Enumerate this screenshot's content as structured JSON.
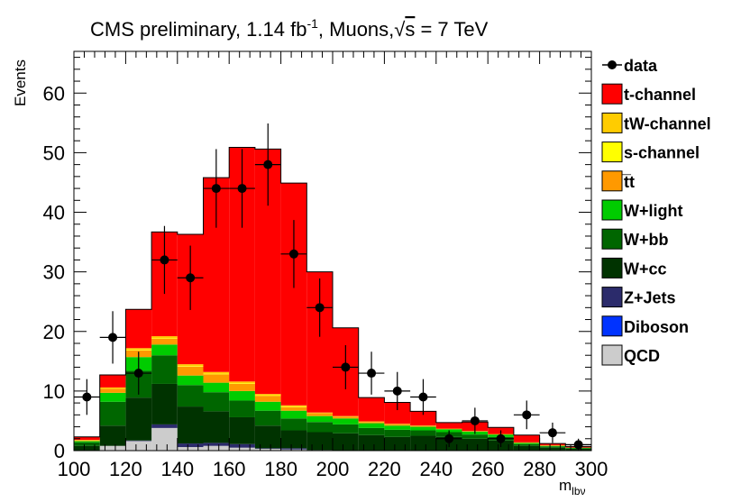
{
  "chart_data": {
    "type": "bar",
    "stacked": true,
    "title": {
      "main": "CMS preliminary, 1.14 fb",
      "lumi_superscript": "-1",
      "channel": ", Muons,",
      "sqrt_symbol": "√",
      "s": "s",
      "energy": " = 7 TeV"
    },
    "xlabel_main": "m",
    "xlabel_sub": "lbν",
    "ylabel": "Events",
    "xlim": [
      100,
      300
    ],
    "ylim": [
      0,
      67
    ],
    "xticks": [
      100,
      120,
      140,
      160,
      180,
      200,
      220,
      240,
      260,
      280,
      300
    ],
    "yticks": [
      0,
      10,
      20,
      30,
      40,
      50,
      60
    ],
    "bin_edges": [
      100,
      110,
      120,
      130,
      140,
      150,
      160,
      170,
      180,
      190,
      200,
      210,
      220,
      230,
      240,
      250,
      260,
      270,
      280,
      290,
      300
    ],
    "series": [
      {
        "name": "QCD",
        "color": "#cccccc",
        "values": [
          0,
          0.8,
          1.6,
          3.8,
          0.6,
          0.8,
          0.5,
          0.3,
          0.2,
          0,
          0,
          0,
          0,
          0,
          0,
          0,
          0,
          0,
          0,
          0
        ]
      },
      {
        "name": "Diboson",
        "color": "#0033ff",
        "values": [
          0,
          0,
          0,
          0,
          0,
          0,
          0,
          0,
          0,
          0,
          0,
          0,
          0,
          0,
          0,
          0,
          0,
          0,
          0,
          0
        ]
      },
      {
        "name": "Z+Jets",
        "color": "#2b2b6b",
        "values": [
          0,
          0,
          0.1,
          0.6,
          0.6,
          0.5,
          0.6,
          0.1,
          0.2,
          0.1,
          0,
          0,
          0,
          0,
          0,
          0,
          0,
          0,
          0,
          0
        ]
      },
      {
        "name": "W+cc",
        "color": "#003300",
        "values": [
          0.8,
          3.4,
          7.2,
          6.8,
          6.2,
          5.3,
          4.5,
          3.8,
          3.0,
          3.0,
          2.9,
          2.6,
          2.3,
          2.5,
          2.3,
          2.0,
          1.7,
          0.8,
          0.5,
          0.3
        ]
      },
      {
        "name": "W+bb",
        "color": "#006600",
        "values": [
          0.6,
          4.0,
          4.5,
          4.8,
          3.6,
          3.2,
          2.8,
          2.5,
          2.0,
          1.7,
          1.5,
          1.2,
          1.2,
          0.9,
          0.8,
          0.7,
          0.6,
          0.3,
          0.2,
          0.1
        ]
      },
      {
        "name": "W+light",
        "color": "#00cc00",
        "values": [
          0.2,
          1.5,
          2.3,
          1.8,
          1.6,
          1.6,
          1.6,
          1.5,
          1.3,
          1.0,
          1.0,
          0.8,
          0.7,
          0.6,
          0.5,
          0.5,
          0.4,
          0.2,
          0.1,
          0.1
        ]
      },
      {
        "name": "t̅t",
        "color": "#ff9900",
        "values": [
          0.1,
          0.7,
          1.1,
          1.0,
          1.5,
          1.4,
          1.2,
          1.0,
          0.6,
          0.5,
          0.3,
          0.2,
          0.2,
          0.1,
          0.1,
          0.1,
          0.1,
          0.1,
          0.1,
          0
        ]
      },
      {
        "name": "s-channel",
        "color": "#ffff00",
        "values": [
          0,
          0,
          0.1,
          0.1,
          0.1,
          0.1,
          0.1,
          0.1,
          0.1,
          0,
          0,
          0,
          0,
          0,
          0,
          0,
          0,
          0,
          0,
          0
        ]
      },
      {
        "name": "tW-channel",
        "color": "#ffcc00",
        "values": [
          0.1,
          0.2,
          0.3,
          0.3,
          0.3,
          0.3,
          0.3,
          0.2,
          0.2,
          0.1,
          0.1,
          0.1,
          0.1,
          0.1,
          0,
          0,
          0,
          0,
          0,
          0
        ]
      },
      {
        "name": "t-channel",
        "color": "#ff0000",
        "values": [
          0.5,
          2.1,
          6.5,
          17.5,
          21.8,
          32.6,
          39.3,
          41.1,
          37.3,
          23.6,
          14.8,
          4.0,
          3.6,
          2.4,
          1.0,
          1.5,
          1.1,
          1.2,
          0.3,
          0.2
        ]
      }
    ],
    "data": {
      "name": "data",
      "x": [
        105,
        115,
        125,
        135,
        145,
        155,
        165,
        175,
        185,
        195,
        205,
        215,
        225,
        235,
        245,
        255,
        265,
        275,
        285,
        295
      ],
      "y": [
        9,
        19,
        13,
        32,
        29,
        44,
        44,
        48,
        33,
        24,
        14,
        13,
        10,
        9,
        2,
        5,
        2,
        6,
        3,
        1
      ],
      "err": [
        3.0,
        4.4,
        3.6,
        5.7,
        5.4,
        6.6,
        6.6,
        6.9,
        5.7,
        4.9,
        3.7,
        3.6,
        3.2,
        3.0,
        1.4,
        2.2,
        1.4,
        2.4,
        1.7,
        1.0
      ]
    },
    "legend": [
      {
        "label": "data",
        "kind": "marker"
      },
      {
        "label": "t-channel",
        "kind": "box",
        "color": "#ff0000"
      },
      {
        "label": "tW-channel",
        "kind": "box",
        "color": "#ffcc00"
      },
      {
        "label": "s-channel",
        "kind": "box",
        "color": "#ffff00"
      },
      {
        "label": "t̅t",
        "kind": "box",
        "color": "#ff9900"
      },
      {
        "label": "W+light",
        "kind": "box",
        "color": "#00cc00"
      },
      {
        "label": "W+bb",
        "kind": "box",
        "color": "#006600"
      },
      {
        "label": "W+cc",
        "kind": "box",
        "color": "#003300"
      },
      {
        "label": "Z+Jets",
        "kind": "box",
        "color": "#2b2b6b"
      },
      {
        "label": "Diboson",
        "kind": "box",
        "color": "#0033ff"
      },
      {
        "label": "QCD",
        "kind": "box",
        "color": "#cccccc"
      }
    ],
    "legend_position": "right"
  }
}
